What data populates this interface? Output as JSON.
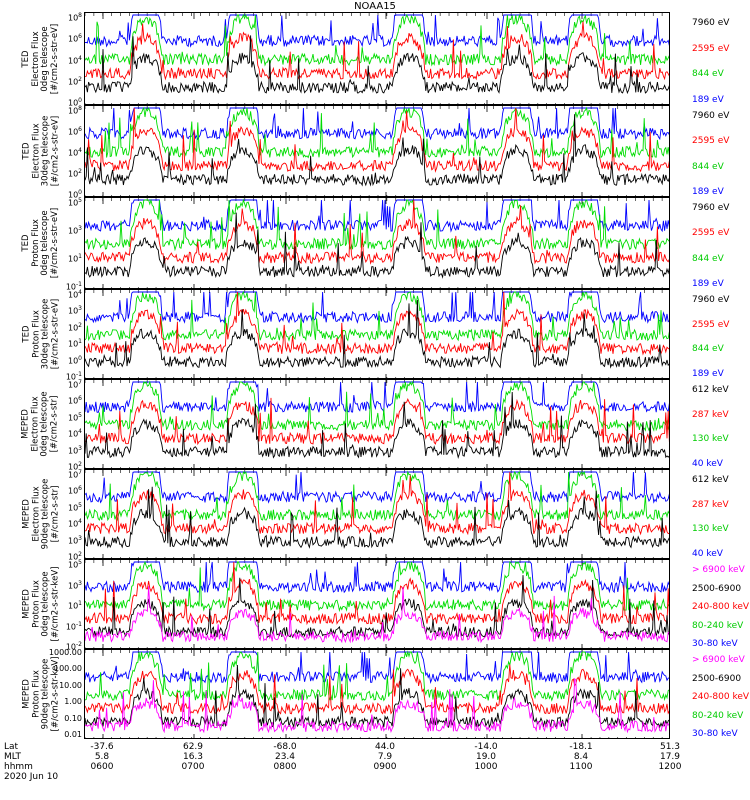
{
  "title": "NOAA15",
  "date": "2020 Jun 10",
  "chart_data": [
    {
      "type": "line",
      "ylabel": [
        "TED",
        "Electron Flux",
        "0deg telescope",
        "[#/cm2-s-str-eV]"
      ],
      "yticks": [
        "10^8",
        "10^6",
        "10^4",
        "10^2",
        "10^0"
      ],
      "series": [
        {
          "name": "7960 eV",
          "color": "#000000"
        },
        {
          "name": "2595 eV",
          "color": "#ff0000"
        },
        {
          "name": "844 eV",
          "color": "#00dd00"
        },
        {
          "name": "189 eV",
          "color": "#0000ff"
        }
      ]
    },
    {
      "type": "line",
      "ylabel": [
        "TED",
        "Electron Flux",
        "30deg telescope",
        "[#/cm2-s-str-eV]"
      ],
      "yticks": [
        "10^8",
        "10^6",
        "10^4",
        "10^2",
        "10^0"
      ],
      "series": [
        {
          "name": "7960 eV",
          "color": "#000000"
        },
        {
          "name": "2595 eV",
          "color": "#ff0000"
        },
        {
          "name": "844 eV",
          "color": "#00dd00"
        },
        {
          "name": "189 eV",
          "color": "#0000ff"
        }
      ]
    },
    {
      "type": "line",
      "ylabel": [
        "TED",
        "Proton Flux",
        "0deg telescope",
        "[#/cm2-s-str-eV]"
      ],
      "yticks": [
        "10^5",
        "10^3",
        "10^1",
        "10^-1"
      ],
      "series": [
        {
          "name": "7960 eV",
          "color": "#000000"
        },
        {
          "name": "2595 eV",
          "color": "#ff0000"
        },
        {
          "name": "844 eV",
          "color": "#00dd00"
        },
        {
          "name": "189 eV",
          "color": "#0000ff"
        }
      ]
    },
    {
      "type": "line",
      "ylabel": [
        "TED",
        "Proton Flux",
        "30deg telescope",
        "[#/cm2-s-str-eV]"
      ],
      "yticks": [
        "10^4",
        "10^3",
        "10^2",
        "10^1",
        "10^0",
        "10^-1"
      ],
      "series": [
        {
          "name": "7960 eV",
          "color": "#000000"
        },
        {
          "name": "2595 eV",
          "color": "#ff0000"
        },
        {
          "name": "844 eV",
          "color": "#00dd00"
        },
        {
          "name": "189 eV",
          "color": "#0000ff"
        }
      ]
    },
    {
      "type": "line",
      "ylabel": [
        "MEPED",
        "Electron Flux",
        "0deg telescope",
        "[#/cm2-s-str]"
      ],
      "yticks": [
        "10^7",
        "10^6",
        "10^5",
        "10^4",
        "10^3",
        "10^2"
      ],
      "series": [
        {
          "name": "612 keV",
          "color": "#000000"
        },
        {
          "name": "287 keV",
          "color": "#ff0000"
        },
        {
          "name": "130 keV",
          "color": "#00dd00"
        },
        {
          "name": "40 keV",
          "color": "#0000ff"
        }
      ]
    },
    {
      "type": "line",
      "ylabel": [
        "MEPED",
        "Electron Flux",
        "90deg telescope",
        "[#/cm2-s-str]"
      ],
      "yticks": [
        "10^7",
        "10^6",
        "10^5",
        "10^4",
        "10^3",
        "10^2"
      ],
      "series": [
        {
          "name": "612 keV",
          "color": "#000000"
        },
        {
          "name": "287 keV",
          "color": "#ff0000"
        },
        {
          "name": "130 keV",
          "color": "#00dd00"
        },
        {
          "name": "40 keV",
          "color": "#0000ff"
        }
      ]
    },
    {
      "type": "line",
      "ylabel": [
        "MEPED",
        "Proton Flux",
        "0deg telescope",
        "[#/cm2-s-str-keV]"
      ],
      "yticks": [
        "10^5",
        "10^3",
        "10^1",
        "10^-1",
        "10^-2"
      ],
      "series": [
        {
          "name": "> 6900 keV",
          "color": "#ff00ff"
        },
        {
          "name": "2500-6900",
          "color": "#000000"
        },
        {
          "name": "240-800 keV",
          "color": "#ff0000"
        },
        {
          "name": "80-240 keV",
          "color": "#00dd00"
        },
        {
          "name": "30-80 keV",
          "color": "#0000ff"
        }
      ]
    },
    {
      "type": "line",
      "ylabel": [
        "MEPED",
        "Proton Flux",
        "90deg telescope",
        "[#/cm2-s-str-keV]"
      ],
      "yticks": [
        "1000.00",
        "100.00",
        "10.00",
        "1.00",
        "0.10",
        "0.01"
      ],
      "series": [
        {
          "name": "> 6900 keV",
          "color": "#ff00ff"
        },
        {
          "name": "2500-6900",
          "color": "#000000"
        },
        {
          "name": "240-800 keV",
          "color": "#ff0000"
        },
        {
          "name": "80-240 keV",
          "color": "#00dd00"
        },
        {
          "name": "30-80 keV",
          "color": "#0000ff"
        }
      ]
    }
  ],
  "xaxis": {
    "rows": [
      "Lat",
      "MLT",
      "hhmm"
    ],
    "ticks": [
      {
        "Lat": "-37.6",
        "MLT": "5.8",
        "hhmm": "0600"
      },
      {
        "Lat": "62.9",
        "MLT": "16.3",
        "hhmm": "0700"
      },
      {
        "Lat": "-68.0",
        "MLT": "23.4",
        "hhmm": "0800"
      },
      {
        "Lat": "44.0",
        "MLT": "7.9",
        "hhmm": "0900"
      },
      {
        "Lat": "-14.0",
        "MLT": "19.0",
        "hhmm": "1000"
      },
      {
        "Lat": "-18.1",
        "MLT": "8.4",
        "hhmm": "1100"
      },
      {
        "Lat": "51.3",
        "MLT": "17.9",
        "hhmm": "1200"
      }
    ]
  }
}
